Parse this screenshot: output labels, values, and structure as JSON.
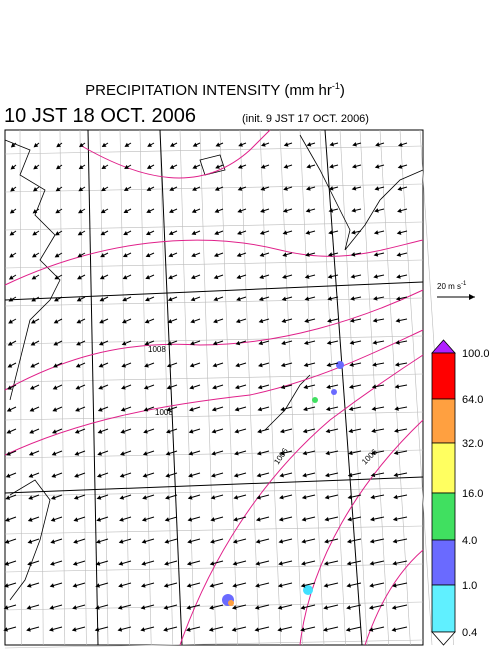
{
  "title": {
    "text": "PRECIPITATION INTENSITY (mm hr",
    "exponent": "-1",
    "close": ")"
  },
  "valid_time": "10 JST 18 OCT. 2006",
  "init_time": "(init. 9 JST 17 OCT. 2006)",
  "scale_arrow": {
    "label": "20 m s",
    "exponent": "-1"
  },
  "isobar_labels": [
    "1008",
    "1008",
    "1006",
    "1006"
  ],
  "legend": {
    "labels": [
      "100.0",
      "64.0",
      "32.0",
      "16.0",
      "4.0",
      "1.0",
      "0.4"
    ]
  }
}
